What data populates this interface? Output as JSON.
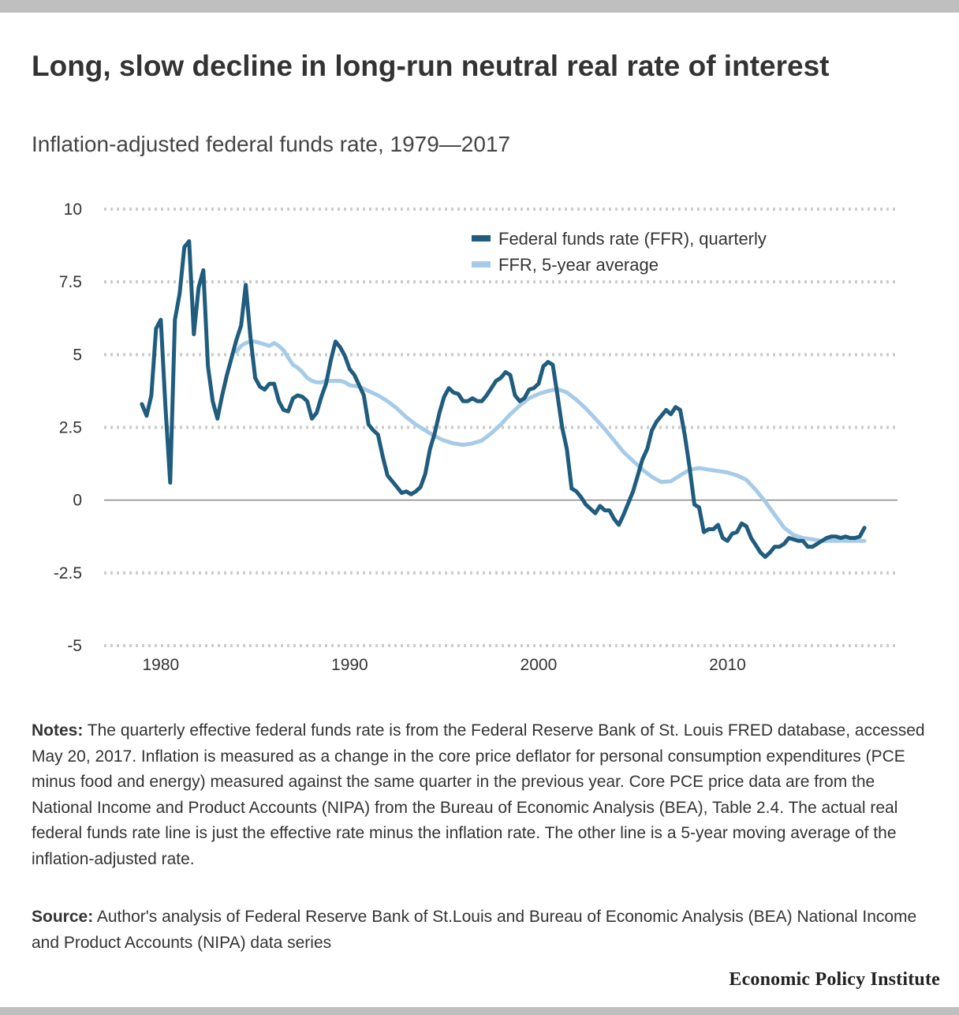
{
  "header": {
    "title": "Long, slow decline in long-run neutral real rate of interest",
    "subtitle": "Inflation-adjusted federal funds rate, 1979—2017"
  },
  "chart_data": {
    "type": "line",
    "title": "Long, slow decline in long-run neutral real rate of interest",
    "subtitle": "Inflation-adjusted federal funds rate, 1979—2017",
    "xlabel": "",
    "ylabel": "",
    "xlim": [
      1977.0,
      2019.0
    ],
    "ylim": [
      -5,
      10
    ],
    "y_ticks": [
      10,
      7.5,
      5,
      2.5,
      0,
      -2.5,
      -5
    ],
    "y_tick_labels": [
      "10",
      "7.5",
      "5",
      "2.5",
      "0",
      "-2.5",
      "-5"
    ],
    "x_ticks": [
      1980,
      1990,
      2000,
      2010
    ],
    "x_tick_labels": [
      "1980",
      "1990",
      "2000",
      "2010"
    ],
    "grid": "horizontal dotted",
    "legend": "top-right",
    "series": [
      {
        "name": "Federal funds rate (FFR), quarterly",
        "color": "#1f5c7e",
        "points": [
          [
            1979.0,
            3.3
          ],
          [
            1979.25,
            2.9
          ],
          [
            1979.5,
            3.6
          ],
          [
            1979.75,
            5.9
          ],
          [
            1980.0,
            6.2
          ],
          [
            1980.25,
            3.2
          ],
          [
            1980.5,
            0.6
          ],
          [
            1980.75,
            6.2
          ],
          [
            1981.0,
            7.1
          ],
          [
            1981.25,
            8.7
          ],
          [
            1981.5,
            8.9
          ],
          [
            1981.75,
            5.7
          ],
          [
            1982.0,
            7.3
          ],
          [
            1982.25,
            7.9
          ],
          [
            1982.5,
            4.6
          ],
          [
            1982.75,
            3.4
          ],
          [
            1983.0,
            2.8
          ],
          [
            1983.25,
            3.6
          ],
          [
            1983.5,
            4.3
          ],
          [
            1983.75,
            4.9
          ],
          [
            1984.0,
            5.5
          ],
          [
            1984.25,
            6.0
          ],
          [
            1984.5,
            7.4
          ],
          [
            1984.75,
            5.6
          ],
          [
            1985.0,
            4.2
          ],
          [
            1985.25,
            3.9
          ],
          [
            1985.5,
            3.8
          ],
          [
            1985.75,
            4.0
          ],
          [
            1986.0,
            4.0
          ],
          [
            1986.25,
            3.4
          ],
          [
            1986.5,
            3.1
          ],
          [
            1986.75,
            3.05
          ],
          [
            1987.0,
            3.5
          ],
          [
            1987.25,
            3.6
          ],
          [
            1987.5,
            3.55
          ],
          [
            1987.75,
            3.4
          ],
          [
            1988.0,
            2.8
          ],
          [
            1988.25,
            3.0
          ],
          [
            1988.5,
            3.55
          ],
          [
            1988.75,
            4.0
          ],
          [
            1989.0,
            4.8
          ],
          [
            1989.25,
            5.45
          ],
          [
            1989.5,
            5.25
          ],
          [
            1989.75,
            4.95
          ],
          [
            1990.0,
            4.5
          ],
          [
            1990.25,
            4.3
          ],
          [
            1990.5,
            3.95
          ],
          [
            1990.75,
            3.6
          ],
          [
            1991.0,
            2.6
          ],
          [
            1991.25,
            2.4
          ],
          [
            1991.5,
            2.25
          ],
          [
            1991.75,
            1.5
          ],
          [
            1992.0,
            0.85
          ],
          [
            1992.25,
            0.65
          ],
          [
            1992.5,
            0.45
          ],
          [
            1992.75,
            0.25
          ],
          [
            1993.0,
            0.3
          ],
          [
            1993.25,
            0.2
          ],
          [
            1993.5,
            0.3
          ],
          [
            1993.75,
            0.45
          ],
          [
            1994.0,
            0.9
          ],
          [
            1994.25,
            1.75
          ],
          [
            1994.5,
            2.3
          ],
          [
            1994.75,
            3.0
          ],
          [
            1995.0,
            3.55
          ],
          [
            1995.25,
            3.85
          ],
          [
            1995.5,
            3.7
          ],
          [
            1995.75,
            3.65
          ],
          [
            1996.0,
            3.4
          ],
          [
            1996.25,
            3.4
          ],
          [
            1996.5,
            3.5
          ],
          [
            1996.75,
            3.4
          ],
          [
            1997.0,
            3.4
          ],
          [
            1997.25,
            3.6
          ],
          [
            1997.5,
            3.85
          ],
          [
            1997.75,
            4.1
          ],
          [
            1998.0,
            4.2
          ],
          [
            1998.25,
            4.4
          ],
          [
            1998.5,
            4.3
          ],
          [
            1998.75,
            3.6
          ],
          [
            1999.0,
            3.4
          ],
          [
            1999.25,
            3.5
          ],
          [
            1999.5,
            3.8
          ],
          [
            1999.75,
            3.85
          ],
          [
            2000.0,
            4.0
          ],
          [
            2000.25,
            4.6
          ],
          [
            2000.5,
            4.75
          ],
          [
            2000.75,
            4.65
          ],
          [
            2001.0,
            3.6
          ],
          [
            2001.25,
            2.5
          ],
          [
            2001.5,
            1.75
          ],
          [
            2001.75,
            0.4
          ],
          [
            2002.0,
            0.3
          ],
          [
            2002.25,
            0.1
          ],
          [
            2002.5,
            -0.15
          ],
          [
            2002.75,
            -0.3
          ],
          [
            2003.0,
            -0.45
          ],
          [
            2003.25,
            -0.2
          ],
          [
            2003.5,
            -0.35
          ],
          [
            2003.75,
            -0.35
          ],
          [
            2004.0,
            -0.65
          ],
          [
            2004.25,
            -0.85
          ],
          [
            2004.5,
            -0.5
          ],
          [
            2004.75,
            -0.1
          ],
          [
            2005.0,
            0.3
          ],
          [
            2005.25,
            0.85
          ],
          [
            2005.5,
            1.4
          ],
          [
            2005.75,
            1.75
          ],
          [
            2006.0,
            2.4
          ],
          [
            2006.25,
            2.7
          ],
          [
            2006.5,
            2.9
          ],
          [
            2006.75,
            3.1
          ],
          [
            2007.0,
            2.95
          ],
          [
            2007.25,
            3.2
          ],
          [
            2007.5,
            3.1
          ],
          [
            2007.75,
            2.2
          ],
          [
            2008.0,
            1.1
          ],
          [
            2008.25,
            -0.15
          ],
          [
            2008.5,
            -0.25
          ],
          [
            2008.75,
            -1.1
          ],
          [
            2009.0,
            -1.0
          ],
          [
            2009.25,
            -1.0
          ],
          [
            2009.5,
            -0.85
          ],
          [
            2009.75,
            -1.3
          ],
          [
            2010.0,
            -1.4
          ],
          [
            2010.25,
            -1.15
          ],
          [
            2010.5,
            -1.1
          ],
          [
            2010.75,
            -0.8
          ],
          [
            2011.0,
            -0.9
          ],
          [
            2011.25,
            -1.3
          ],
          [
            2011.5,
            -1.55
          ],
          [
            2011.75,
            -1.8
          ],
          [
            2012.0,
            -1.95
          ],
          [
            2012.25,
            -1.8
          ],
          [
            2012.5,
            -1.6
          ],
          [
            2012.75,
            -1.6
          ],
          [
            2013.0,
            -1.5
          ],
          [
            2013.25,
            -1.3
          ],
          [
            2013.5,
            -1.35
          ],
          [
            2013.75,
            -1.4
          ],
          [
            2014.0,
            -1.4
          ],
          [
            2014.25,
            -1.6
          ],
          [
            2014.5,
            -1.6
          ],
          [
            2014.75,
            -1.5
          ],
          [
            2015.0,
            -1.4
          ],
          [
            2015.25,
            -1.3
          ],
          [
            2015.5,
            -1.25
          ],
          [
            2015.75,
            -1.25
          ],
          [
            2016.0,
            -1.3
          ],
          [
            2016.25,
            -1.25
          ],
          [
            2016.5,
            -1.3
          ],
          [
            2016.75,
            -1.3
          ],
          [
            2017.0,
            -1.25
          ],
          [
            2017.25,
            -0.95
          ]
        ]
      },
      {
        "name": "FFR, 5-year average",
        "color": "#a6cbe8",
        "points": [
          [
            1984.0,
            5.1
          ],
          [
            1984.25,
            5.3
          ],
          [
            1984.5,
            5.4
          ],
          [
            1984.75,
            5.45
          ],
          [
            1985.0,
            5.45
          ],
          [
            1985.25,
            5.4
          ],
          [
            1985.5,
            5.35
          ],
          [
            1985.75,
            5.3
          ],
          [
            1986.0,
            5.4
          ],
          [
            1986.25,
            5.3
          ],
          [
            1986.5,
            5.15
          ],
          [
            1986.75,
            4.9
          ],
          [
            1987.0,
            4.65
          ],
          [
            1987.25,
            4.55
          ],
          [
            1987.5,
            4.4
          ],
          [
            1987.75,
            4.2
          ],
          [
            1988.0,
            4.1
          ],
          [
            1988.25,
            4.05
          ],
          [
            1988.5,
            4.05
          ],
          [
            1988.75,
            4.1
          ],
          [
            1989.0,
            4.1
          ],
          [
            1989.25,
            4.1
          ],
          [
            1989.5,
            4.1
          ],
          [
            1989.75,
            4.05
          ],
          [
            1990.0,
            3.95
          ],
          [
            1990.5,
            3.9
          ],
          [
            1991.0,
            3.75
          ],
          [
            1991.5,
            3.6
          ],
          [
            1992.0,
            3.4
          ],
          [
            1992.5,
            3.15
          ],
          [
            1993.0,
            2.85
          ],
          [
            1993.5,
            2.6
          ],
          [
            1994.0,
            2.4
          ],
          [
            1994.5,
            2.2
          ],
          [
            1995.0,
            2.05
          ],
          [
            1995.5,
            1.95
          ],
          [
            1996.0,
            1.9
          ],
          [
            1996.5,
            1.95
          ],
          [
            1997.0,
            2.05
          ],
          [
            1997.5,
            2.3
          ],
          [
            1998.0,
            2.6
          ],
          [
            1998.5,
            2.95
          ],
          [
            1999.0,
            3.25
          ],
          [
            1999.5,
            3.5
          ],
          [
            2000.0,
            3.65
          ],
          [
            2000.5,
            3.75
          ],
          [
            2001.0,
            3.82
          ],
          [
            2001.5,
            3.7
          ],
          [
            2002.0,
            3.45
          ],
          [
            2002.5,
            3.15
          ],
          [
            2003.0,
            2.8
          ],
          [
            2003.5,
            2.45
          ],
          [
            2004.0,
            2.05
          ],
          [
            2004.5,
            1.65
          ],
          [
            2005.0,
            1.35
          ],
          [
            2005.5,
            1.05
          ],
          [
            2006.0,
            0.8
          ],
          [
            2006.5,
            0.62
          ],
          [
            2007.0,
            0.65
          ],
          [
            2007.5,
            0.85
          ],
          [
            2008.0,
            1.05
          ],
          [
            2008.5,
            1.1
          ],
          [
            2009.0,
            1.05
          ],
          [
            2009.5,
            1.0
          ],
          [
            2010.0,
            0.95
          ],
          [
            2010.5,
            0.85
          ],
          [
            2011.0,
            0.7
          ],
          [
            2011.5,
            0.35
          ],
          [
            2012.0,
            -0.05
          ],
          [
            2012.5,
            -0.5
          ],
          [
            2013.0,
            -0.95
          ],
          [
            2013.5,
            -1.2
          ],
          [
            2014.0,
            -1.3
          ],
          [
            2014.5,
            -1.35
          ],
          [
            2015.0,
            -1.4
          ],
          [
            2015.5,
            -1.4
          ],
          [
            2016.0,
            -1.4
          ],
          [
            2016.5,
            -1.4
          ],
          [
            2017.0,
            -1.4
          ],
          [
            2017.25,
            -1.4
          ]
        ]
      }
    ]
  },
  "notes": {
    "label": "Notes:",
    "text": " The quarterly effective federal funds rate is from the Federal Reserve Bank of St. Louis FRED database, accessed May 20, 2017. Inflation is measured as a change in the core price deflator for personal consumption expenditures (PCE minus food and energy) measured against the same quarter in the previous year. Core PCE price data are from the National Income and Product Accounts (NIPA) from the Bureau of Economic Analysis (BEA), Table 2.4. The actual real federal funds rate line is just the effective rate minus the inflation rate. The other line is a 5-year moving average of the inflation-adjusted rate."
  },
  "source": {
    "label": "Source:",
    "text": " Author's analysis of  Federal Reserve Bank of St.Louis and Bureau of Economic Analysis (BEA) National Income and Product Accounts (NIPA) data series"
  },
  "brand": "Economic Policy Institute",
  "colors": {
    "grid": "#cccccc",
    "zero_line": "#888888",
    "text": "#333333"
  }
}
